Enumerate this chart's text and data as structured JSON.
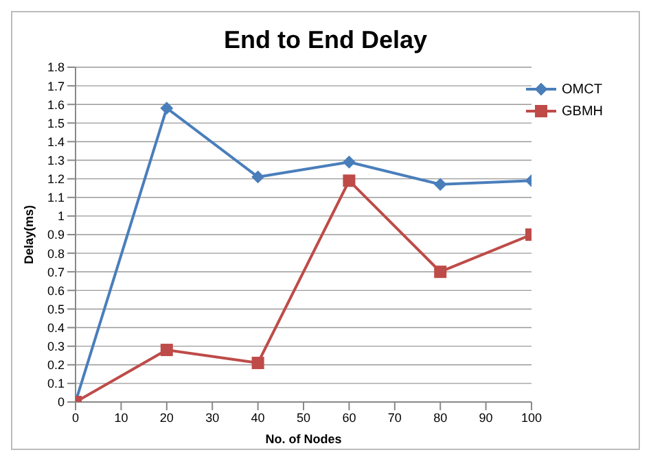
{
  "chart_data": {
    "type": "line",
    "title": "End to End Delay",
    "xlabel": "No. of Nodes",
    "ylabel": "Delay(ms)",
    "x": [
      0,
      20,
      40,
      60,
      80,
      100
    ],
    "series": [
      {
        "name": "OMCT",
        "color": "#4a7ebb",
        "marker": "diamond",
        "values": [
          0,
          1.58,
          1.21,
          1.29,
          1.17,
          1.19
        ]
      },
      {
        "name": "GBMH",
        "color": "#be4b48",
        "marker": "square",
        "values": [
          0,
          0.28,
          0.21,
          1.19,
          0.7,
          0.9
        ]
      }
    ],
    "xlim": [
      0,
      100
    ],
    "xticks": [
      0,
      10,
      20,
      30,
      40,
      50,
      60,
      70,
      80,
      90,
      100
    ],
    "ylim": [
      0,
      1.8
    ],
    "yticks": [
      0,
      0.1,
      0.2,
      0.3,
      0.4,
      0.5,
      0.6,
      0.7,
      0.8,
      0.9,
      1,
      1.1,
      1.2,
      1.3,
      1.4,
      1.5,
      1.6,
      1.7,
      1.8
    ],
    "grid": "y",
    "legend": "top right"
  }
}
